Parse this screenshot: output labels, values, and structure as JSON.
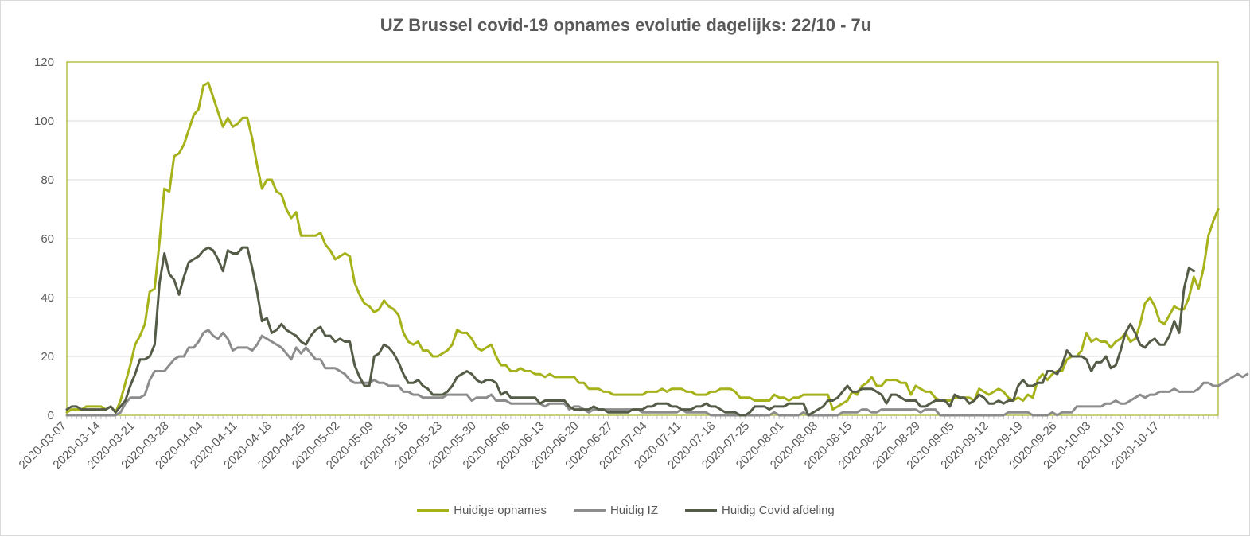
{
  "chart_data": {
    "type": "line",
    "title": "UZ Brussel covid-19 opnames evolutie dagelijks: 22/10 - 7u",
    "xlabel": "",
    "ylabel": "",
    "ylim": [
      0,
      120
    ],
    "yticks": [
      "0",
      "20",
      "40",
      "60",
      "80",
      "100",
      "120"
    ],
    "grid": "horizontal",
    "legend_position": "bottom",
    "x_start": "2020-03-07",
    "x_tick_labels": [
      "2020-03-07",
      "2020-03-14",
      "2020-03-21",
      "2020-03-28",
      "2020-04-04",
      "2020-04-11",
      "2020-04-18",
      "2020-04-25",
      "2020-05-02",
      "2020-05-09",
      "2020-05-16",
      "2020-05-23",
      "2020-05-30",
      "2020-06-06",
      "2020-06-13",
      "2020-06-20",
      "2020-06-27",
      "2020-07-04",
      "2020-07-11",
      "2020-07-18",
      "2020-07-25",
      "2020-08-01",
      "2020-08-08",
      "2020-08-15",
      "2020-08-22",
      "2020-08-29",
      "2020-09-05",
      "2020-09-12",
      "2020-09-19",
      "2020-09-26",
      "2020-10-03",
      "2020-10-10",
      "2020-10-17"
    ],
    "series": [
      {
        "name": "Huidige opnames",
        "color": "#a5b21a",
        "values": [
          1,
          2,
          2,
          2,
          3,
          3,
          3,
          3,
          2,
          3,
          1,
          5,
          11,
          17,
          24,
          27,
          31,
          42,
          43,
          59,
          77,
          76,
          88,
          89,
          92,
          97,
          102,
          104,
          112,
          113,
          108,
          103,
          98,
          101,
          98,
          99,
          101,
          101,
          94,
          85,
          77,
          80,
          80,
          76,
          75,
          70,
          67,
          69,
          61,
          61,
          61,
          61,
          62,
          58,
          56,
          53,
          54,
          55,
          54,
          45,
          41,
          38,
          37,
          35,
          36,
          39,
          37,
          36,
          34,
          28,
          25,
          24,
          25,
          22,
          22,
          20,
          20,
          21,
          22,
          24,
          29,
          28,
          28,
          26,
          23,
          22,
          23,
          24,
          20,
          17,
          17,
          15,
          15,
          16,
          15,
          15,
          14,
          14,
          13,
          14,
          13,
          13,
          13,
          13,
          13,
          11,
          11,
          9,
          9,
          9,
          8,
          8,
          7,
          7,
          7,
          7,
          7,
          7,
          7,
          8,
          8,
          8,
          9,
          8,
          9,
          9,
          9,
          8,
          8,
          7,
          7,
          7,
          8,
          8,
          9,
          9,
          9,
          8,
          6,
          6,
          6,
          5,
          5,
          5,
          5,
          7,
          6,
          6,
          5,
          6,
          6,
          7,
          7,
          7,
          7,
          7,
          7,
          2,
          3,
          4,
          5,
          8,
          7,
          10,
          11,
          13,
          10,
          10,
          12,
          12,
          12,
          11,
          11,
          7,
          10,
          9,
          8,
          8,
          6,
          5,
          5,
          5,
          6,
          6,
          6,
          6,
          5,
          9,
          8,
          7,
          8,
          9,
          8,
          6,
          5,
          6,
          5,
          7,
          6,
          12,
          14,
          12,
          14,
          15,
          15,
          19,
          20,
          20,
          22,
          28,
          25,
          26,
          25,
          25,
          23,
          25,
          26,
          28,
          25,
          26,
          31,
          38,
          40,
          37,
          32,
          31,
          34,
          37,
          36,
          36,
          40,
          47,
          43,
          50,
          61,
          66,
          70
        ]
      },
      {
        "name": "Huidig IZ",
        "color": "#8c8c8c",
        "values": [
          0,
          0,
          0,
          0,
          0,
          0,
          0,
          0,
          0,
          0,
          0,
          1,
          4,
          6,
          6,
          6,
          7,
          12,
          15,
          15,
          15,
          17,
          19,
          20,
          20,
          23,
          23,
          25,
          28,
          29,
          27,
          26,
          28,
          26,
          22,
          23,
          23,
          23,
          22,
          24,
          27,
          26,
          25,
          24,
          23,
          21,
          19,
          23,
          21,
          23,
          21,
          19,
          19,
          16,
          16,
          16,
          15,
          14,
          12,
          11,
          11,
          11,
          11,
          12,
          11,
          11,
          10,
          10,
          10,
          8,
          8,
          7,
          7,
          6,
          6,
          6,
          6,
          6,
          7,
          7,
          7,
          7,
          7,
          5,
          6,
          6,
          6,
          7,
          5,
          5,
          5,
          4,
          4,
          4,
          4,
          4,
          4,
          4,
          3,
          4,
          4,
          4,
          4,
          2,
          3,
          3,
          2,
          1,
          2,
          2,
          2,
          2,
          2,
          2,
          2,
          2,
          2,
          2,
          1,
          1,
          1,
          1,
          1,
          1,
          1,
          1,
          2,
          1,
          1,
          1,
          1,
          1,
          0,
          0,
          0,
          0,
          0,
          0,
          0,
          0,
          0,
          0,
          0,
          0,
          0,
          1,
          0,
          0,
          0,
          0,
          0,
          1,
          0,
          0,
          0,
          0,
          0,
          0,
          0,
          1,
          1,
          1,
          1,
          2,
          2,
          1,
          1,
          2,
          2,
          2,
          2,
          2,
          2,
          2,
          2,
          1,
          2,
          2,
          2,
          0,
          0,
          0,
          0,
          0,
          0,
          0,
          0,
          0,
          0,
          0,
          0,
          0,
          0,
          1,
          1,
          1,
          1,
          1,
          0,
          0,
          0,
          0,
          1,
          0,
          1,
          1,
          1,
          3,
          3,
          3,
          3,
          3,
          3,
          4,
          4,
          5,
          4,
          4,
          5,
          6,
          7,
          6,
          7,
          7,
          8,
          8,
          8,
          9,
          8,
          8,
          8,
          8,
          9,
          11,
          11,
          10,
          10,
          11,
          12,
          13,
          14,
          13,
          14
        ]
      },
      {
        "name": "Huidig Covid afdeling",
        "color": "#545b46",
        "values": [
          2,
          3,
          3,
          2,
          2,
          2,
          2,
          2,
          2,
          3,
          1,
          3,
          5,
          10,
          14,
          19,
          19,
          20,
          24,
          45,
          55,
          48,
          46,
          41,
          47,
          52,
          53,
          54,
          56,
          57,
          56,
          53,
          49,
          56,
          55,
          55,
          57,
          57,
          50,
          42,
          32,
          33,
          28,
          29,
          31,
          29,
          28,
          27,
          25,
          24,
          27,
          29,
          30,
          27,
          27,
          25,
          26,
          25,
          25,
          17,
          13,
          10,
          10,
          20,
          21,
          24,
          23,
          21,
          18,
          14,
          11,
          11,
          12,
          10,
          9,
          7,
          7,
          7,
          8,
          10,
          13,
          14,
          15,
          14,
          12,
          11,
          12,
          12,
          11,
          7,
          8,
          6,
          6,
          6,
          6,
          6,
          6,
          4,
          5,
          5,
          5,
          5,
          5,
          3,
          2,
          2,
          2,
          2,
          3,
          2,
          2,
          1,
          1,
          1,
          1,
          1,
          2,
          2,
          2,
          3,
          3,
          4,
          4,
          4,
          3,
          3,
          2,
          2,
          2,
          3,
          3,
          4,
          3,
          3,
          2,
          1,
          1,
          1,
          0,
          0,
          1,
          3,
          3,
          3,
          2,
          3,
          3,
          3,
          4,
          4,
          4,
          4,
          0,
          1,
          2,
          3,
          5,
          5,
          6,
          8,
          10,
          8,
          8,
          9,
          9,
          9,
          8,
          7,
          4,
          7,
          7,
          6,
          5,
          5,
          5,
          3,
          3,
          4,
          5,
          5,
          5,
          3,
          7,
          6,
          6,
          4,
          5,
          7,
          6,
          4,
          4,
          5,
          4,
          5,
          5,
          10,
          12,
          10,
          10,
          11,
          11,
          15,
          15,
          14,
          17,
          22,
          20,
          20,
          20,
          19,
          15,
          18,
          18,
          20,
          16,
          17,
          22,
          28,
          31,
          28,
          24,
          23,
          25,
          26,
          24,
          24,
          27,
          32,
          28,
          43,
          50,
          49
        ]
      }
    ]
  }
}
